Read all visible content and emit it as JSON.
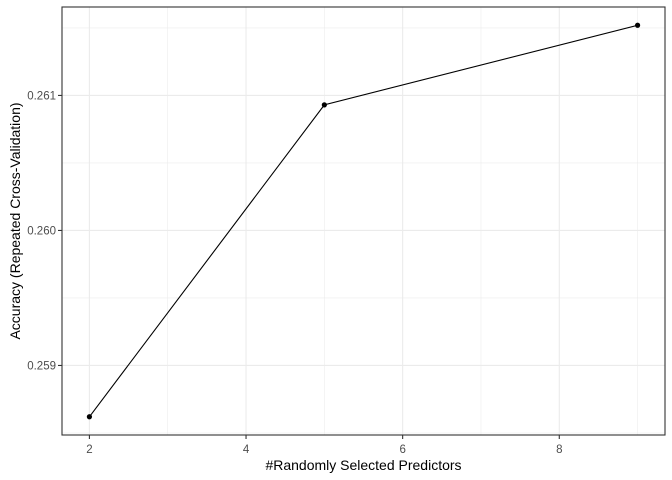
{
  "chart_data": {
    "type": "line",
    "title": "",
    "xlabel": "#Randomly Selected Predictors",
    "ylabel": "Accuracy (Repeated Cross-Validation)",
    "x": [
      2,
      5,
      9
    ],
    "series": [
      {
        "values": [
          0.25862,
          0.26093,
          0.26152
        ]
      }
    ],
    "xlim": [
      1.65,
      9.35
    ],
    "ylim": [
      0.258485,
      0.261655
    ],
    "xticks": [
      2,
      4,
      6,
      8
    ],
    "xtick_labels": [
      "2",
      "4",
      "6",
      "8"
    ],
    "xminor": [
      3,
      5,
      7,
      9
    ],
    "yticks": [
      0.259,
      0.26,
      0.261
    ],
    "ytick_labels": [
      "0.259",
      "0.260",
      "0.261"
    ],
    "yminor": [
      0.2585,
      0.2595,
      0.2605,
      0.2615
    ],
    "grid": true,
    "legend": "none",
    "colors": {
      "line": "#000000",
      "point": "#000000",
      "grid": "#ebebeb",
      "panel_border": "#333333"
    }
  }
}
